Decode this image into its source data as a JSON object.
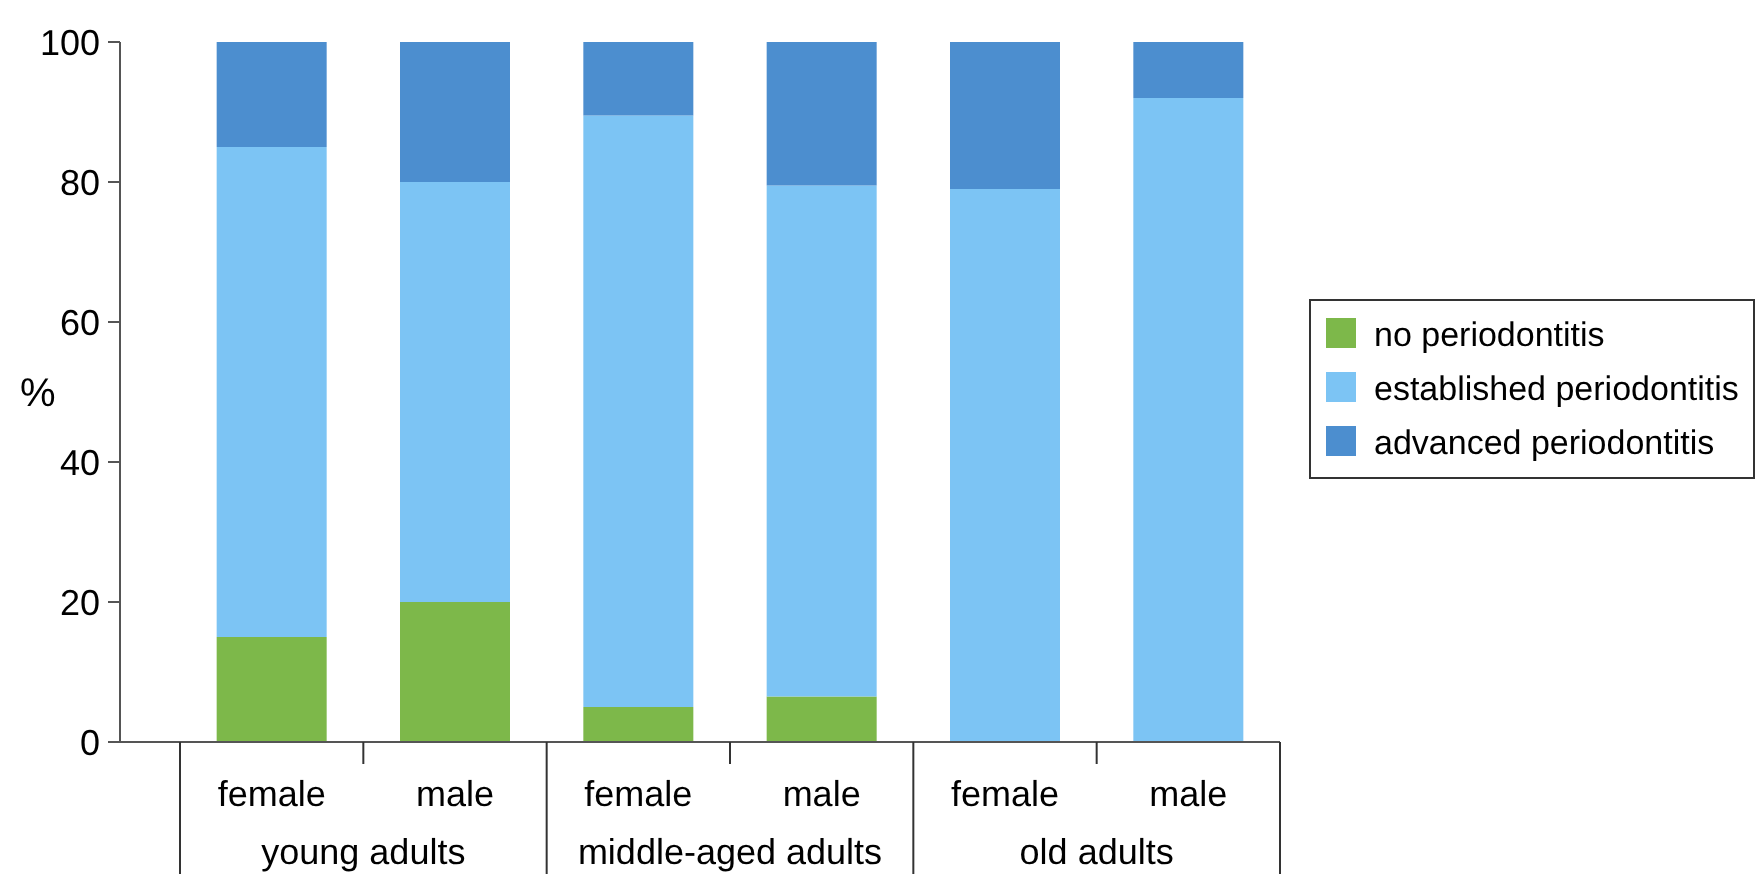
{
  "chart_data": {
    "type": "bar",
    "stacked": true,
    "ylabel": "%",
    "categories": [
      "female",
      "male",
      "female",
      "male",
      "female",
      "male"
    ],
    "annotations": [
      "young adults",
      "middle-aged adults",
      "old adults"
    ],
    "series": [
      {
        "name": "no periodontitis",
        "color": "#7db84a",
        "values": [
          15,
          20,
          5,
          6.5,
          0,
          0
        ]
      },
      {
        "name": "established periodontitis",
        "color": "#7cc4f4",
        "values": [
          70,
          60,
          84.5,
          73,
          79,
          92
        ]
      },
      {
        "name": "advanced periodontitis",
        "color": "#4c8ecf",
        "values": [
          15,
          20,
          10.5,
          20.5,
          21,
          8
        ]
      }
    ],
    "ylim": [
      0,
      100
    ],
    "yticks": [
      0,
      20,
      40,
      60,
      80,
      100
    ],
    "legend": "right",
    "grid": false
  }
}
